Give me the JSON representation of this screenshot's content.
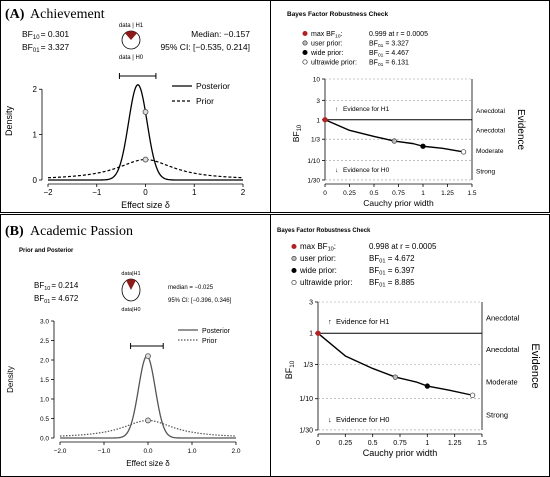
{
  "panelA": {
    "label": "(A)",
    "title": "Achievement",
    "left": {
      "bf10_label": "BF",
      "bf10_sub": "10",
      "bf10_value": "= 0.301",
      "bf01_label": "BF",
      "bf01_sub": "01",
      "bf01_value": "= 3.327",
      "pie_top": "data | H1",
      "pie_bottom": "data | H0",
      "median": "Median: −0.157",
      "ci": "95% CI: [−0.535, 0.214]",
      "legend": [
        "Posterior",
        "Prior"
      ],
      "xlabel": "Effect size δ",
      "ylabel": "Density",
      "xticks": [
        "−2",
        "−1",
        "0",
        "1",
        "2"
      ]
    },
    "right": {
      "title": "Bayes Factor Robustness Check",
      "legend": [
        {
          "label": "max BF",
          "sub": "10",
          "suffix": ":",
          "value": "0.999 at r = 0.0005"
        },
        {
          "label": "user prior:",
          "value_pre": "BF",
          "value_sub": "01",
          "value": " = 3.327"
        },
        {
          "label": "wide prior:",
          "value_pre": "BF",
          "value_sub": "01",
          "value": " = 4.467"
        },
        {
          "label": "ultrawide prior:",
          "value_pre": "BF",
          "value_sub": "01",
          "value": " = 6.131"
        }
      ],
      "yticks": [
        "10",
        "3",
        "1",
        "1/3",
        "1/10",
        "1/30"
      ],
      "xticks": [
        "0",
        "0.25",
        "0.5",
        "0.75",
        "1",
        "1.25",
        "1.5"
      ],
      "xlabel": "Cauchy prior width",
      "ylabel_main": "BF",
      "ylabel_sub": "10",
      "evidence_h1": "Evidence for H1",
      "evidence_h0": "Evidence for H0",
      "categories": [
        "Anecdotal",
        "Anecdotal",
        "Moderate",
        "Strong"
      ],
      "side_label": "Evidence"
    }
  },
  "panelB": {
    "label": "(B)",
    "title": "Academic Passion",
    "left": {
      "subtitle": "Prior and Posterior",
      "bf10_label": "BF",
      "bf10_sub": "10",
      "bf10_value": "= 0.214",
      "bf01_label": "BF",
      "bf01_sub": "01",
      "bf01_value": "= 4.672",
      "pie_top": "data|H1",
      "pie_bottom": "data|H0",
      "median": "median = −0.025",
      "ci": "95% CI: [−0.396, 0.346]",
      "legend": [
        "Posterior",
        "Prior"
      ],
      "xlabel": "Effect size δ",
      "ylabel": "Density",
      "xticks": [
        "−2.0",
        "−1.0",
        "0.0",
        "1.0",
        "2.0"
      ],
      "yticks": [
        "0.0",
        "0.5",
        "1.0",
        "1.5",
        "2.0",
        "2.5",
        "3.0"
      ]
    },
    "right": {
      "title": "Bayes Factor Robustness Check",
      "legend": [
        {
          "label": "max BF",
          "sub": "10",
          "suffix": ":",
          "value": "0.998 at r = 0.0005"
        },
        {
          "label": "user prior:",
          "value_pre": "BF",
          "value_sub": "01",
          "value": " = 4.672"
        },
        {
          "label": "wide prior:",
          "value_pre": "BF",
          "value_sub": "01",
          "value": " = 6.397"
        },
        {
          "label": "ultrawide prior:",
          "value_pre": "BF",
          "value_sub": "01",
          "value": " = 8.885"
        }
      ],
      "yticks": [
        "3",
        "1",
        "1/3",
        "1/10",
        "1/30"
      ],
      "xticks": [
        "0",
        "0.25",
        "0.5",
        "0.75",
        "1",
        "1.25",
        "1.5"
      ],
      "xlabel": "Cauchy prior width",
      "ylabel_main": "BF",
      "ylabel_sub": "10",
      "evidence_h1": "Evidence for H1",
      "evidence_h0": "Evidence for H0",
      "categories": [
        "Anecdotal",
        "Anecdotal",
        "Moderate",
        "Strong"
      ],
      "side_label": "Evidence"
    }
  },
  "colors": {
    "max_point": "#b22222",
    "pie_h1": "#8b1a1a",
    "frame": "#000000"
  },
  "chart_data": [
    {
      "id": "A-prior-posterior",
      "type": "line",
      "xlim": [
        -2,
        2
      ],
      "ylim": [
        0,
        2.6
      ],
      "series": [
        {
          "name": "Posterior",
          "style": "solid",
          "distribution": "normal",
          "mean": -0.157,
          "sd": 0.19
        },
        {
          "name": "Prior",
          "style": "dashed",
          "distribution": "cauchy",
          "location": 0,
          "scale": 0.707
        }
      ],
      "ci": [
        -0.535,
        0.214
      ],
      "points_at_zero": {
        "posterior": 1.5,
        "prior": 0.45
      }
    },
    {
      "id": "A-robustness",
      "type": "line",
      "xlim": [
        0,
        1.5
      ],
      "y_scale": "log",
      "ylim": [
        0.0333,
        10
      ],
      "series": [
        {
          "name": "BF10",
          "x": [
            0.0005,
            0.25,
            0.5,
            0.707,
            0.9,
            1,
            1.2,
            1.414
          ],
          "y": [
            0.999,
            0.55,
            0.39,
            0.301,
            0.26,
            0.224,
            0.2,
            0.163
          ]
        }
      ],
      "points": [
        {
          "kind": "max",
          "x": 0.0005,
          "y": 0.999
        },
        {
          "kind": "user",
          "x": 0.707,
          "y": 0.301
        },
        {
          "kind": "wide",
          "x": 1.0,
          "y": 0.224
        },
        {
          "kind": "ultrawide",
          "x": 1.414,
          "y": 0.163
        }
      ]
    },
    {
      "id": "B-prior-posterior",
      "type": "line",
      "xlim": [
        -2,
        2
      ],
      "ylim": [
        0,
        3
      ],
      "series": [
        {
          "name": "Posterior",
          "style": "solid",
          "distribution": "normal",
          "mean": -0.025,
          "sd": 0.19
        },
        {
          "name": "Prior",
          "style": "dotted",
          "distribution": "cauchy",
          "location": 0,
          "scale": 0.707
        }
      ],
      "ci": [
        -0.396,
        0.346
      ],
      "points_at_zero": {
        "posterior": 2.1,
        "prior": 0.45
      }
    },
    {
      "id": "B-robustness",
      "type": "line",
      "xlim": [
        0,
        1.5
      ],
      "y_scale": "log",
      "ylim": [
        0.0333,
        3
      ],
      "series": [
        {
          "name": "BF10",
          "x": [
            0.0005,
            0.25,
            0.5,
            0.707,
            0.9,
            1,
            1.2,
            1.414
          ],
          "y": [
            0.998,
            0.45,
            0.29,
            0.214,
            0.18,
            0.156,
            0.135,
            0.113
          ]
        }
      ],
      "points": [
        {
          "kind": "max",
          "x": 0.0005,
          "y": 0.998
        },
        {
          "kind": "user",
          "x": 0.707,
          "y": 0.214
        },
        {
          "kind": "wide",
          "x": 1.0,
          "y": 0.156
        },
        {
          "kind": "ultrawide",
          "x": 1.414,
          "y": 0.113
        }
      ]
    }
  ]
}
